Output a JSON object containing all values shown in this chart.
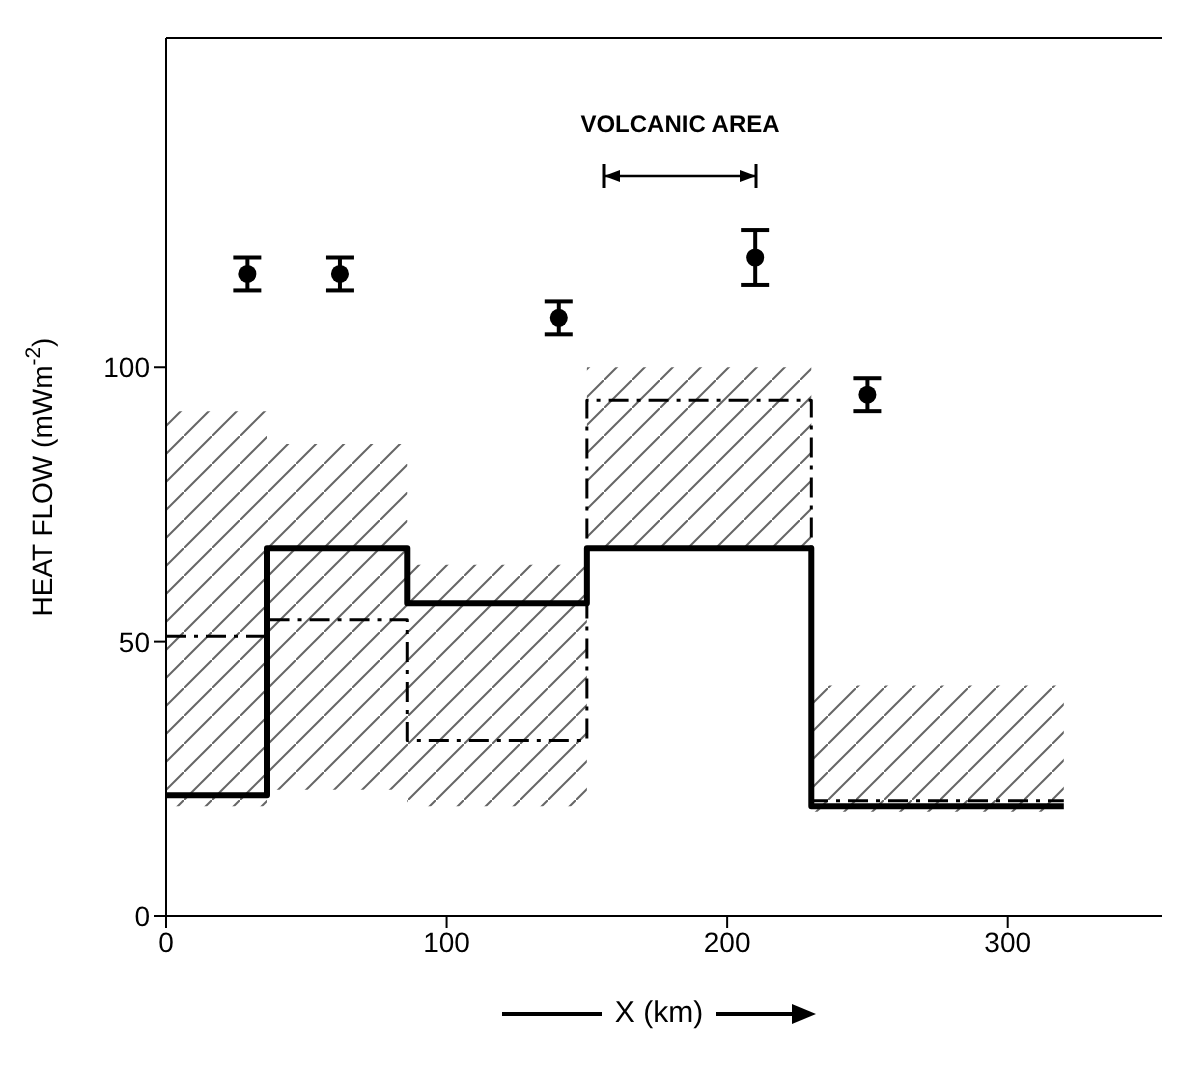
{
  "chart_data": {
    "type": "step",
    "xlabel": "X (km)",
    "ylabel": "HEAT FLOW (mWm$^{-2}$)",
    "xlim": [
      0,
      355
    ],
    "xticks": [
      0,
      100,
      200,
      300
    ],
    "ylim": [
      0,
      160
    ],
    "yticks": [
      0,
      50,
      100
    ],
    "annotations": [
      "VOLCANIC AREA"
    ],
    "series": [
      {
        "color": "#000000",
        "line_style": "solid",
        "marker": "none",
        "x": [
          0,
          36,
          86,
          150,
          230,
          320
        ],
        "values": [
          22,
          67,
          57,
          67,
          20,
          20
        ],
        "lower": [
          20,
          23,
          20,
          67,
          19,
          19
        ],
        "upper": [
          92,
          86,
          64,
          100,
          42,
          42
        ]
      },
      {
        "color": "#000000",
        "line_style": "dashed",
        "marker": "none",
        "x": [
          0,
          36,
          86,
          150,
          230,
          320
        ],
        "values": [
          51,
          54,
          32,
          94,
          21,
          21
        ]
      },
      {
        "type": "scatter",
        "color": "#000000",
        "marker": "circle",
        "x": [
          29,
          62,
          140,
          210,
          250
        ],
        "values": [
          117,
          117,
          109,
          120,
          95
        ],
        "errors": [
          3,
          3,
          3,
          5,
          3
        ]
      }
    ]
  }
}
